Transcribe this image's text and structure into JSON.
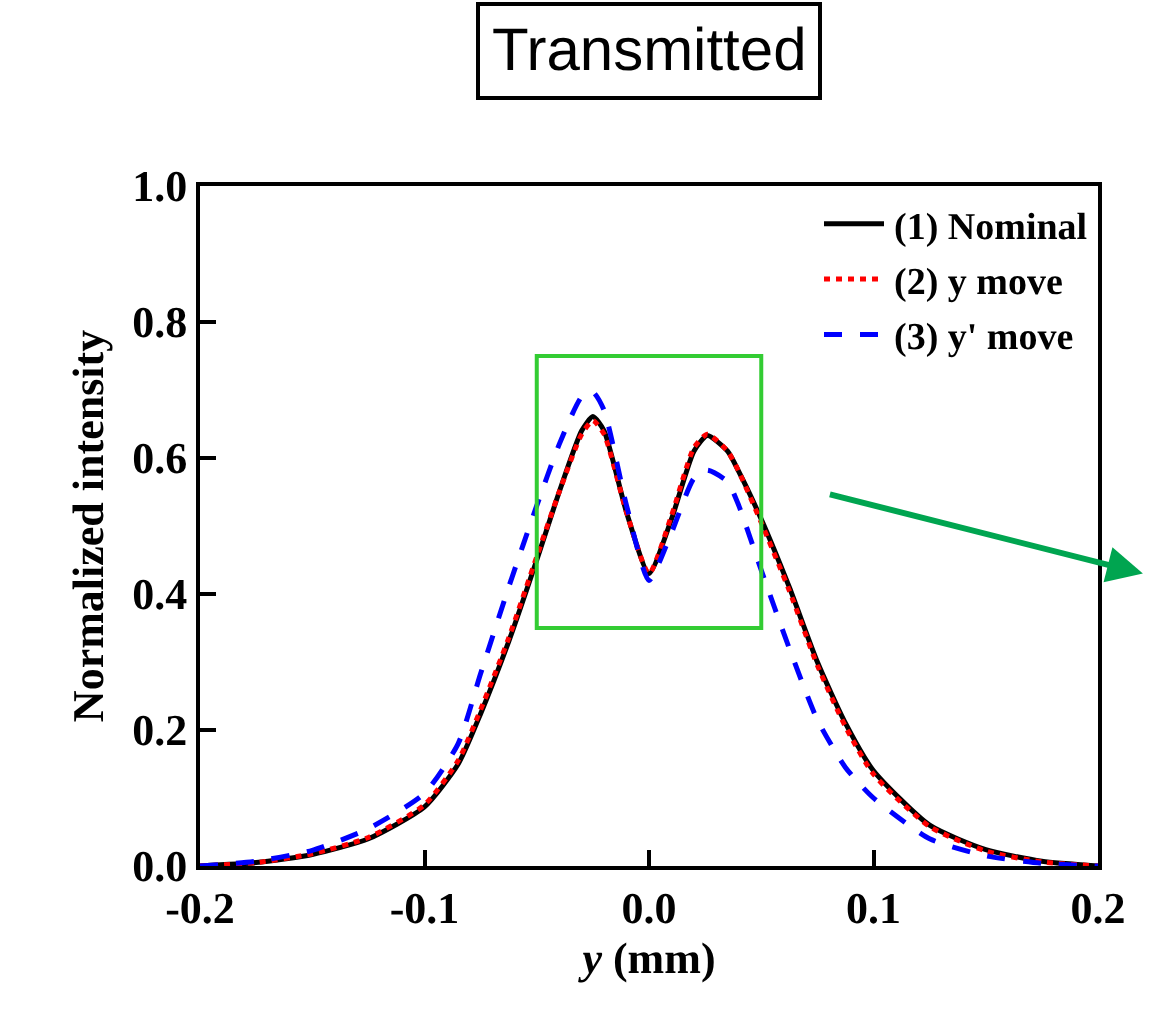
{
  "chart_data": {
    "type": "line",
    "title": "Transmitted",
    "xlabel": "y (mm)",
    "ylabel": "Normalized intensity",
    "x": [
      -0.2,
      -0.175,
      -0.15,
      -0.125,
      -0.1,
      -0.085,
      -0.075,
      -0.0625,
      -0.05,
      -0.04,
      -0.03,
      -0.025,
      -0.02,
      -0.01,
      0,
      0.01,
      0.02,
      0.026,
      0.035,
      0.04,
      0.05,
      0.0625,
      0.075,
      0.0875,
      0.1,
      0.125,
      0.15,
      0.175,
      0.2
    ],
    "series": [
      {
        "name": "(1) Nominal",
        "color": "#000000",
        "line_style": "solid",
        "values": [
          0,
          0.005,
          0.017,
          0.04,
          0.087,
          0.15,
          0.224,
          0.33,
          0.45,
          0.55,
          0.64,
          0.661,
          0.64,
          0.52,
          0.43,
          0.51,
          0.61,
          0.633,
          0.61,
          0.58,
          0.51,
          0.41,
          0.3,
          0.21,
          0.14,
          0.06,
          0.024,
          0.007,
          0
        ]
      },
      {
        "name": "(2) y move",
        "color": "#ff0000",
        "line_style": "dotted",
        "values": [
          0,
          0.005,
          0.018,
          0.042,
          0.09,
          0.155,
          0.23,
          0.335,
          0.455,
          0.55,
          0.635,
          0.655,
          0.635,
          0.52,
          0.43,
          0.515,
          0.615,
          0.635,
          0.61,
          0.58,
          0.505,
          0.405,
          0.295,
          0.205,
          0.135,
          0.058,
          0.022,
          0.006,
          0
        ]
      },
      {
        "name": "(3) y' move",
        "color": "#0000ff",
        "line_style": "dashed",
        "values": [
          0,
          0.007,
          0.023,
          0.055,
          0.107,
          0.18,
          0.283,
          0.41,
          0.53,
          0.62,
          0.69,
          0.697,
          0.67,
          0.53,
          0.42,
          0.49,
          0.57,
          0.582,
          0.565,
          0.53,
          0.435,
          0.32,
          0.215,
          0.145,
          0.1,
          0.04,
          0.015,
          0.004,
          0
        ]
      }
    ],
    "xlim": [
      -0.2,
      0.2
    ],
    "xticks": [
      {
        "value": -0.2,
        "label": "-0.2"
      },
      {
        "value": -0.1,
        "label": "-0.1"
      },
      {
        "value": 0,
        "label": "0.0"
      },
      {
        "value": 0.1,
        "label": "0.1"
      },
      {
        "value": 0.2,
        "label": "0.2"
      }
    ],
    "ylim": [
      0,
      1
    ],
    "yticks": [
      {
        "value": 0,
        "label": "0.0"
      },
      {
        "value": 0.2,
        "label": "0.2"
      },
      {
        "value": 0.4,
        "label": "0.4"
      },
      {
        "value": 0.6,
        "label": "0.6"
      },
      {
        "value": 0.8,
        "label": "0.8"
      },
      {
        "value": 1,
        "label": "1.0"
      }
    ],
    "legend": "top right",
    "marker": "none"
  }
}
